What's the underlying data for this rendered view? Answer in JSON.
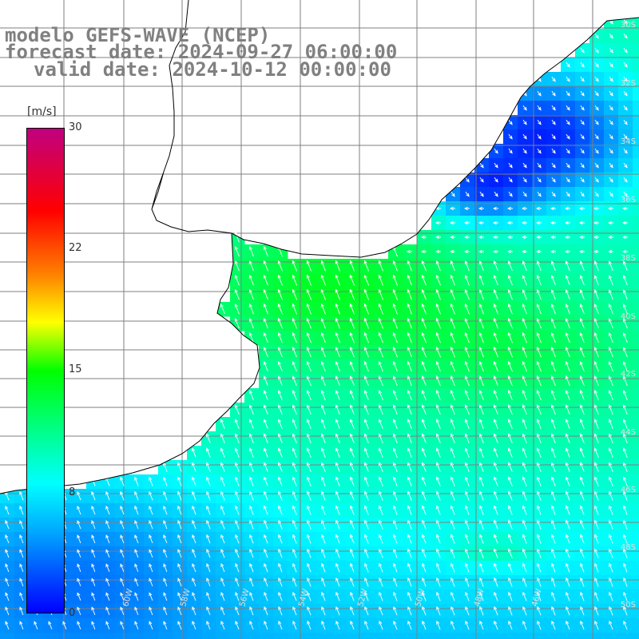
{
  "title": {
    "model": "modelo GEFS-WAVE (NCEP)",
    "forecast": "forecast date: 2024-09-27 06:00:00",
    "valid": "valid date: 2024-10-12 00:00:00"
  },
  "colorbar": {
    "unit": "[m/s]",
    "ticks": [
      "30",
      "22",
      "15",
      "8",
      "0"
    ],
    "tick_values": [
      30,
      22,
      15,
      8,
      0
    ],
    "colors": [
      "#0000ff",
      "#00aaff",
      "#00ffff",
      "#00ff00",
      "#ffff00",
      "#ff8000",
      "#ff0000",
      "#c00080"
    ]
  },
  "map": {
    "lat_labels": [
      "30S",
      "32S",
      "34S",
      "36S",
      "38S",
      "40S",
      "42S",
      "44S",
      "46S",
      "48S",
      "50S"
    ],
    "lon_labels": [
      "60W",
      "58W",
      "56W",
      "54W",
      "52W",
      "50W",
      "48W",
      "46W"
    ],
    "land_color": "#ffffff",
    "grid_color": "#7f7f7f",
    "arrow_color": "#ffffff"
  }
}
